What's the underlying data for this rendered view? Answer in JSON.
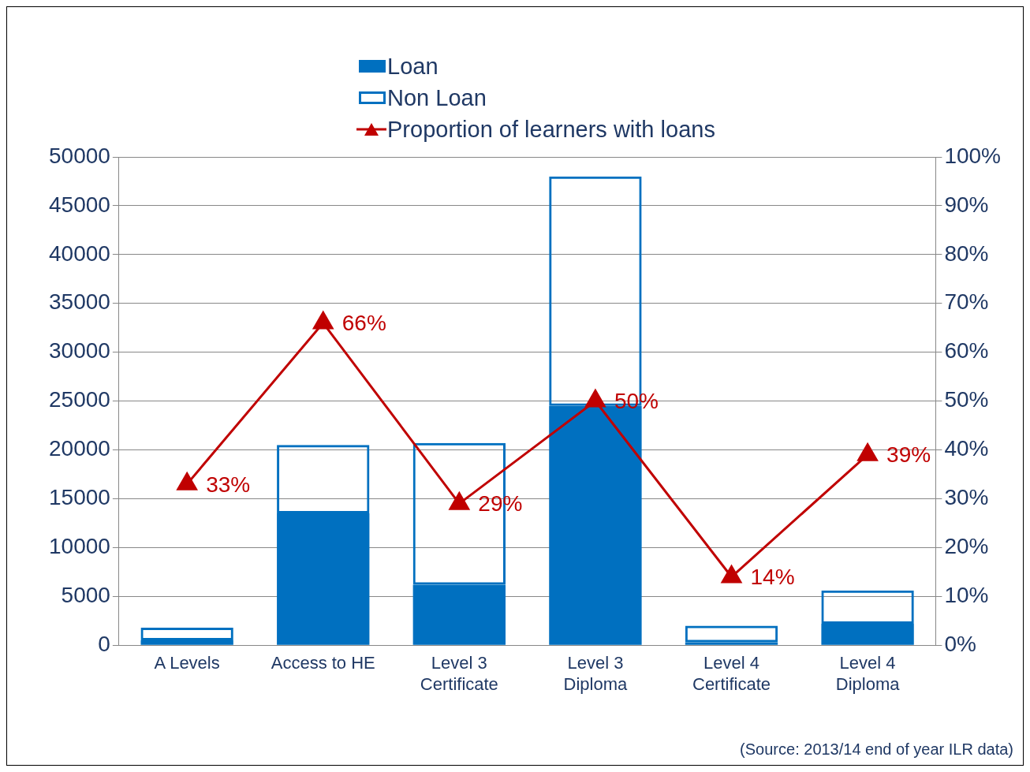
{
  "chart_data": {
    "type": "bar",
    "stacked": true,
    "categories": [
      "A Levels",
      "Access to HE",
      "Level 3 Certificate",
      "Level 3 Diploma",
      "Level 4 Certificate",
      "Level 4 Diploma"
    ],
    "series": [
      {
        "name": "Loan",
        "color": "#0070c0",
        "values": [
          500,
          13500,
          6200,
          24500,
          300,
          2200
        ]
      },
      {
        "name": "Non Loan",
        "color": "#0070c0",
        "values": [
          1300,
          7000,
          14500,
          23500,
          1700,
          3400
        ]
      },
      {
        "name": "Proportion of learners with loans",
        "type": "line",
        "axis": "y2",
        "color": "#c00000",
        "values": [
          33,
          66,
          29,
          50,
          14,
          39
        ],
        "value_labels": [
          "33%",
          "66%",
          "29%",
          "50%",
          "14%",
          "39%"
        ]
      }
    ],
    "ylim": [
      0,
      50000
    ],
    "yticks": [
      0,
      5000,
      10000,
      15000,
      20000,
      25000,
      30000,
      35000,
      40000,
      45000,
      50000
    ],
    "y2lim": [
      0,
      100
    ],
    "y2ticks": [
      {
        "value": 0,
        "label": "0%"
      },
      {
        "value": 10,
        "label": "10%"
      },
      {
        "value": 20,
        "label": "20%"
      },
      {
        "value": 30,
        "label": "30%"
      },
      {
        "value": 40,
        "label": "40%"
      },
      {
        "value": 50,
        "label": "50%"
      },
      {
        "value": 60,
        "label": "60%"
      },
      {
        "value": 70,
        "label": "70%"
      },
      {
        "value": 80,
        "label": "80%"
      },
      {
        "value": 90,
        "label": "90%"
      },
      {
        "value": 100,
        "label": "100%"
      }
    ],
    "grid": "y",
    "legend": "top",
    "marker": "triangle",
    "line_style": "solid",
    "annotations": [
      "(Source: 2013/14 end of year ILR data)"
    ]
  }
}
